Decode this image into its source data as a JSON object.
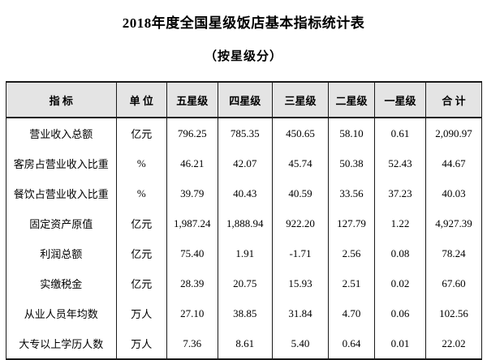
{
  "title": "2018年度全国星级饭店基本指标统计表",
  "subtitle": "（按星级分）",
  "table": {
    "headers": [
      "指 标",
      "单 位",
      "五星级",
      "四星级",
      "三星级",
      "二星级",
      "一星级",
      "合 计"
    ],
    "rows": [
      {
        "indicator": "营业收入总额",
        "unit": "亿元",
        "values": [
          "796.25",
          "785.35",
          "450.65",
          "58.10",
          "0.61",
          "2,090.97"
        ]
      },
      {
        "indicator": "客房占营业收入比重",
        "unit": "%",
        "values": [
          "46.21",
          "42.07",
          "45.74",
          "50.38",
          "52.43",
          "44.67"
        ]
      },
      {
        "indicator": "餐饮占营业收入比重",
        "unit": "%",
        "values": [
          "39.79",
          "40.43",
          "40.59",
          "33.56",
          "37.23",
          "40.03"
        ]
      },
      {
        "indicator": "固定资产原值",
        "unit": "亿元",
        "values": [
          "1,987.24",
          "1,888.94",
          "922.20",
          "127.79",
          "1.22",
          "4,927.39"
        ]
      },
      {
        "indicator": "利润总额",
        "unit": "亿元",
        "values": [
          "75.40",
          "1.91",
          "-1.71",
          "2.56",
          "0.08",
          "78.24"
        ]
      },
      {
        "indicator": "实缴税金",
        "unit": "亿元",
        "values": [
          "28.39",
          "20.75",
          "15.93",
          "2.51",
          "0.02",
          "67.60"
        ]
      },
      {
        "indicator": "从业人员年均数",
        "unit": "万人",
        "values": [
          "27.10",
          "38.85",
          "31.84",
          "4.70",
          "0.06",
          "102.56"
        ]
      },
      {
        "indicator": "大专以上学历人数",
        "unit": "万人",
        "values": [
          "7.36",
          "8.61",
          "5.40",
          "0.64",
          "0.01",
          "22.02"
        ]
      }
    ],
    "colors": {
      "header_background": "#e4e4e4",
      "border": "#1a1a1a",
      "text": "#000000",
      "page_background": "#ffffff"
    }
  }
}
